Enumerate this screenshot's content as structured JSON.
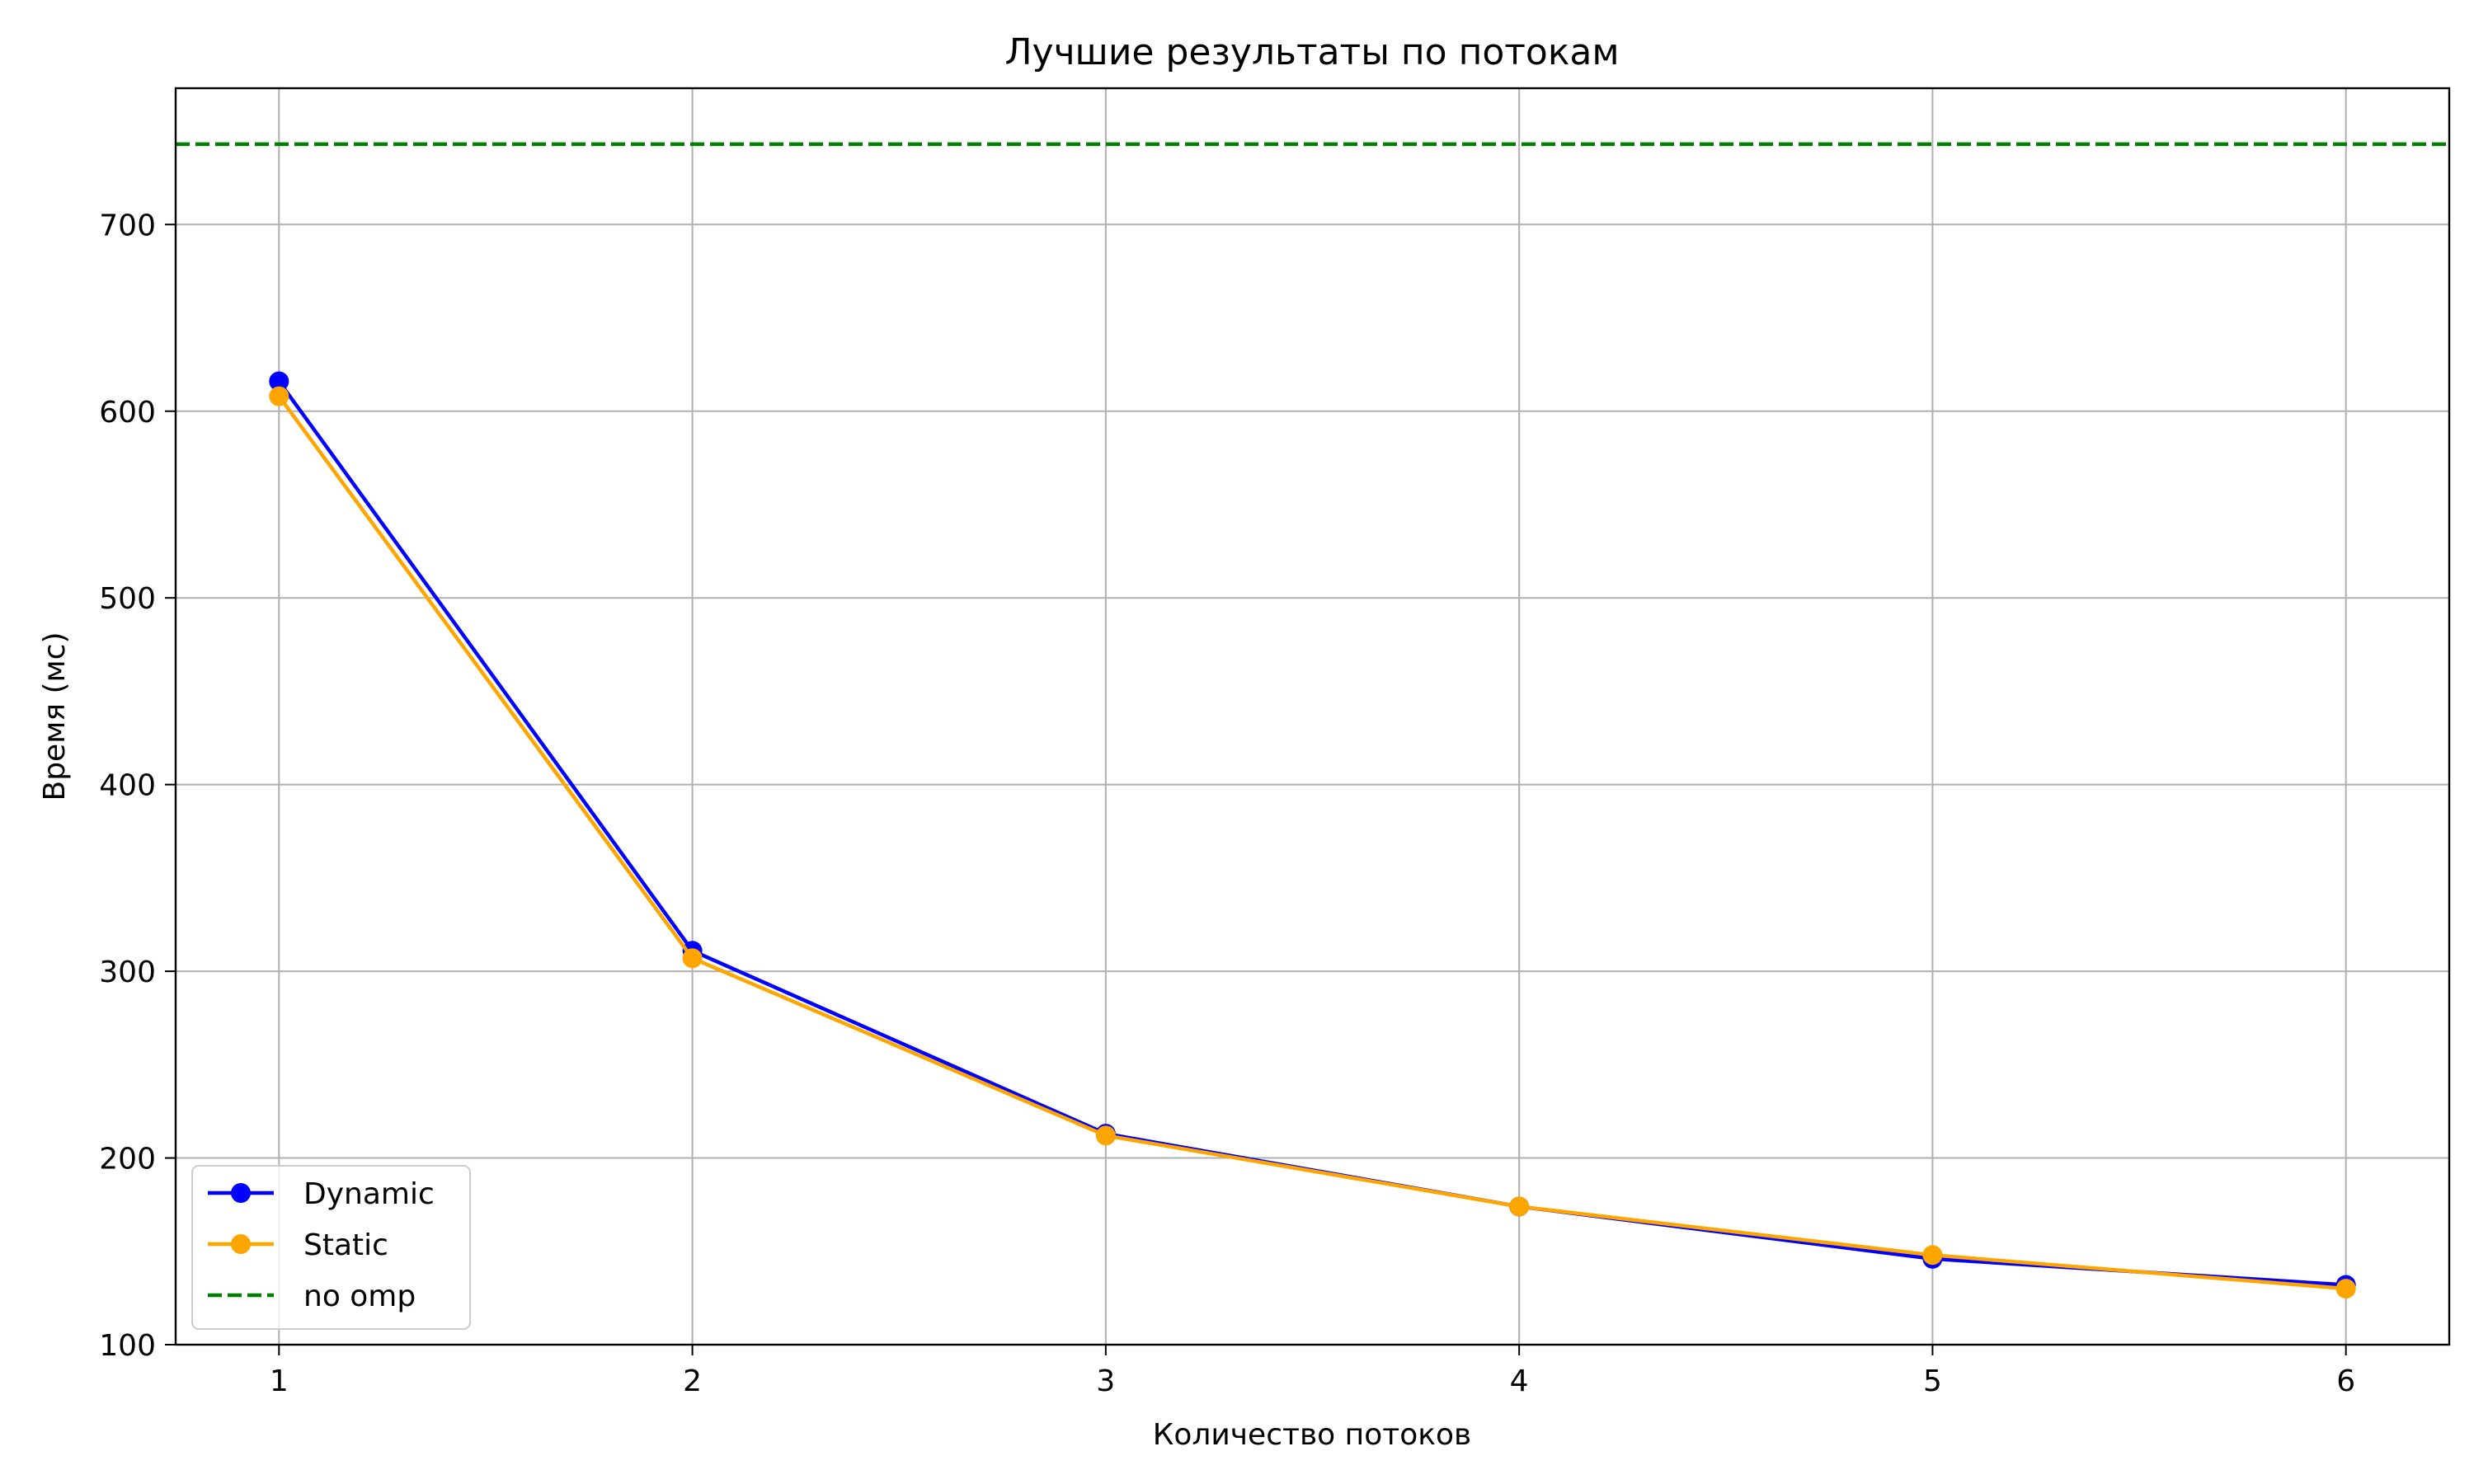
{
  "chart_data": {
    "type": "line",
    "title": "Лучшие результаты по потокам",
    "xlabel": "Количество потоков",
    "ylabel": "Время (мс)",
    "x": [
      1,
      2,
      3,
      4,
      5,
      6
    ],
    "xlim": [
      0.75,
      6.25
    ],
    "ylim": [
      100,
      773
    ],
    "xticks": [
      1,
      2,
      3,
      4,
      5,
      6
    ],
    "yticks": [
      100,
      200,
      300,
      400,
      500,
      600,
      700
    ],
    "grid": true,
    "legend_position": "lower-left",
    "series": [
      {
        "name": "Dynamic",
        "values": [
          616,
          311,
          213,
          174,
          146,
          132
        ],
        "color": "#0000ff",
        "style": "solid",
        "marker": "circle"
      },
      {
        "name": "Static",
        "values": [
          608,
          307,
          212,
          174,
          148,
          130
        ],
        "color": "#ffa500",
        "style": "solid",
        "marker": "circle"
      }
    ],
    "reference_lines": [
      {
        "name": "no omp",
        "value": 743,
        "color": "#008000",
        "style": "dashed"
      }
    ]
  }
}
